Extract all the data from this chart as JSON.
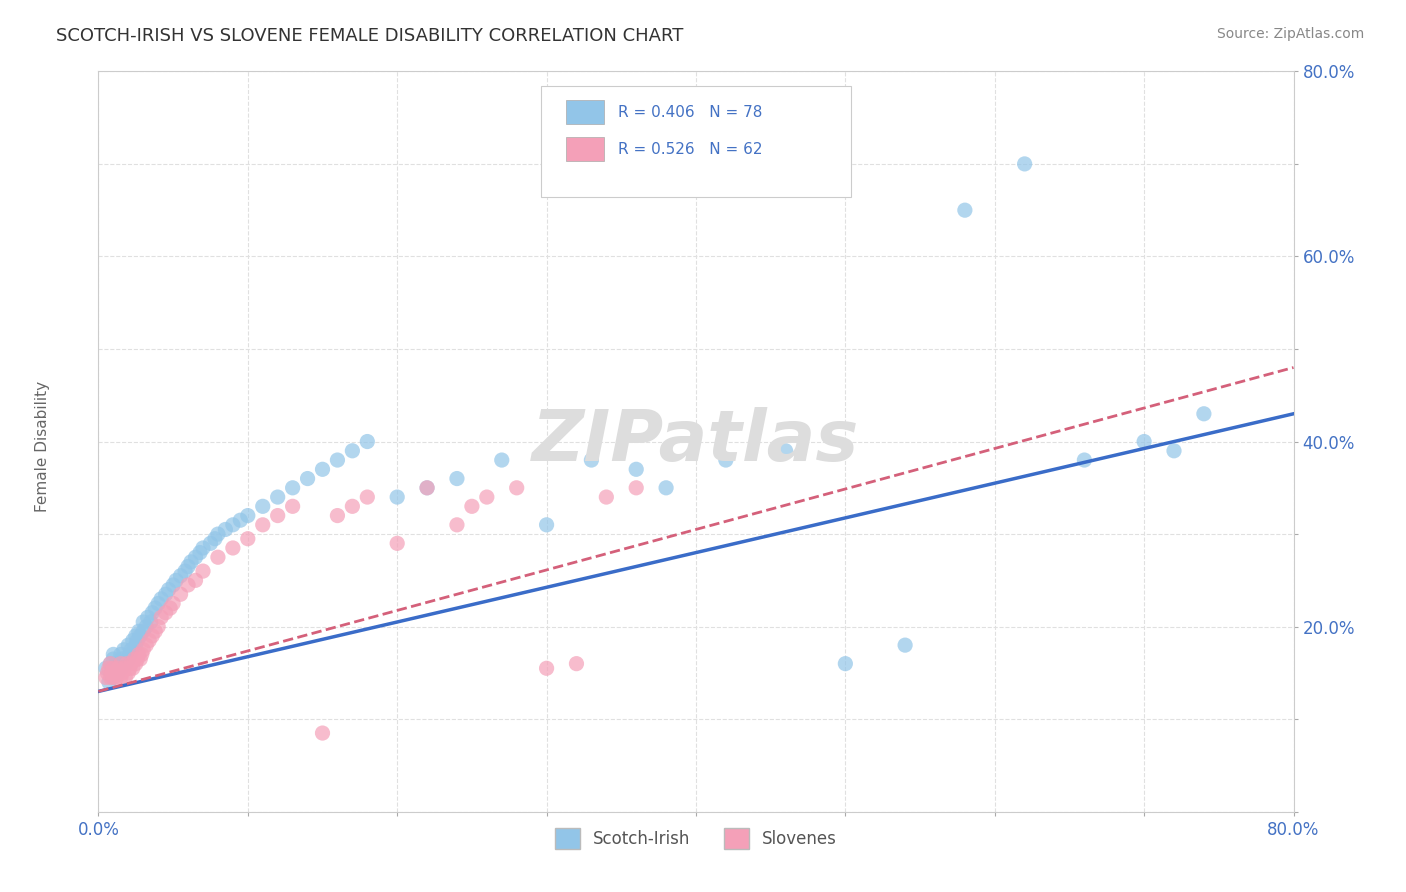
{
  "title": "SCOTCH-IRISH VS SLOVENE FEMALE DISABILITY CORRELATION CHART",
  "source_text": "Source: ZipAtlas.com",
  "ylabel": "Female Disability",
  "xlim": [
    0.0,
    0.8
  ],
  "ylim": [
    0.0,
    0.8
  ],
  "scotch_irish_color": "#92C5E8",
  "slovene_color": "#F4A0B8",
  "trendline_scotch_color": "#3A6CC8",
  "trendline_slovene_color": "#D4607A",
  "R_scotch": 0.406,
  "N_scotch": 78,
  "R_slovene": 0.526,
  "N_slovene": 62,
  "legend_text_color": "#4472C4",
  "background_color": "#FFFFFF",
  "grid_color": "#E0E0E0",
  "watermark_color": "#DDDDDD",
  "scotch_irish_x": [
    0.005,
    0.007,
    0.008,
    0.009,
    0.01,
    0.01,
    0.01,
    0.011,
    0.012,
    0.013,
    0.015,
    0.015,
    0.016,
    0.017,
    0.018,
    0.02,
    0.02,
    0.021,
    0.022,
    0.023,
    0.025,
    0.025,
    0.026,
    0.027,
    0.028,
    0.03,
    0.03,
    0.032,
    0.033,
    0.035,
    0.036,
    0.038,
    0.04,
    0.042,
    0.045,
    0.047,
    0.05,
    0.052,
    0.055,
    0.058,
    0.06,
    0.062,
    0.065,
    0.068,
    0.07,
    0.075,
    0.078,
    0.08,
    0.085,
    0.09,
    0.095,
    0.1,
    0.11,
    0.12,
    0.13,
    0.14,
    0.15,
    0.16,
    0.17,
    0.18,
    0.2,
    0.22,
    0.24,
    0.27,
    0.3,
    0.33,
    0.36,
    0.38,
    0.42,
    0.46,
    0.5,
    0.54,
    0.58,
    0.62,
    0.66,
    0.7,
    0.72,
    0.74
  ],
  "scotch_irish_y": [
    0.155,
    0.14,
    0.16,
    0.15,
    0.145,
    0.165,
    0.17,
    0.155,
    0.16,
    0.15,
    0.155,
    0.17,
    0.165,
    0.175,
    0.16,
    0.165,
    0.18,
    0.17,
    0.175,
    0.185,
    0.18,
    0.19,
    0.185,
    0.195,
    0.19,
    0.195,
    0.205,
    0.2,
    0.21,
    0.205,
    0.215,
    0.22,
    0.225,
    0.23,
    0.235,
    0.24,
    0.245,
    0.25,
    0.255,
    0.26,
    0.265,
    0.27,
    0.275,
    0.28,
    0.285,
    0.29,
    0.295,
    0.3,
    0.305,
    0.31,
    0.315,
    0.32,
    0.33,
    0.34,
    0.35,
    0.36,
    0.37,
    0.38,
    0.39,
    0.4,
    0.34,
    0.35,
    0.36,
    0.38,
    0.31,
    0.38,
    0.37,
    0.35,
    0.38,
    0.39,
    0.16,
    0.18,
    0.65,
    0.7,
    0.38,
    0.4,
    0.39,
    0.43
  ],
  "slovene_x": [
    0.005,
    0.006,
    0.007,
    0.008,
    0.008,
    0.009,
    0.01,
    0.01,
    0.011,
    0.012,
    0.013,
    0.014,
    0.015,
    0.015,
    0.016,
    0.017,
    0.018,
    0.019,
    0.02,
    0.021,
    0.022,
    0.023,
    0.024,
    0.025,
    0.026,
    0.027,
    0.028,
    0.029,
    0.03,
    0.032,
    0.034,
    0.036,
    0.038,
    0.04,
    0.042,
    0.045,
    0.048,
    0.05,
    0.055,
    0.06,
    0.065,
    0.07,
    0.08,
    0.09,
    0.1,
    0.11,
    0.12,
    0.13,
    0.15,
    0.16,
    0.17,
    0.18,
    0.2,
    0.22,
    0.24,
    0.25,
    0.26,
    0.28,
    0.3,
    0.32,
    0.34,
    0.36
  ],
  "slovene_y": [
    0.145,
    0.15,
    0.155,
    0.145,
    0.16,
    0.15,
    0.145,
    0.155,
    0.15,
    0.145,
    0.155,
    0.15,
    0.145,
    0.16,
    0.15,
    0.155,
    0.145,
    0.16,
    0.15,
    0.155,
    0.16,
    0.155,
    0.165,
    0.16,
    0.165,
    0.17,
    0.165,
    0.17,
    0.175,
    0.18,
    0.185,
    0.19,
    0.195,
    0.2,
    0.21,
    0.215,
    0.22,
    0.225,
    0.235,
    0.245,
    0.25,
    0.26,
    0.275,
    0.285,
    0.295,
    0.31,
    0.32,
    0.33,
    0.085,
    0.32,
    0.33,
    0.34,
    0.29,
    0.35,
    0.31,
    0.33,
    0.34,
    0.35,
    0.155,
    0.16,
    0.34,
    0.35
  ]
}
